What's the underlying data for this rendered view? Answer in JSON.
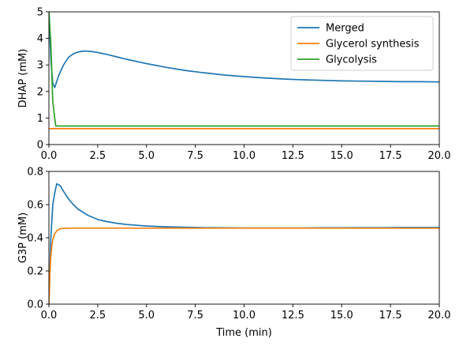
{
  "chart_data": [
    {
      "type": "line",
      "title": "",
      "xlabel": "",
      "ylabel": "DHAP (mM)",
      "xlim": [
        0,
        20
      ],
      "ylim": [
        0,
        5
      ],
      "xticks": [
        0,
        2.5,
        5,
        7.5,
        10,
        12.5,
        15,
        17.5,
        20
      ],
      "xtick_labels": [
        "0.0",
        "2.5",
        "5.0",
        "7.5",
        "10.0",
        "12.5",
        "15.0",
        "17.5",
        "20.0"
      ],
      "yticks": [
        0,
        1,
        2,
        3,
        4,
        5
      ],
      "ytick_labels": [
        "0",
        "1",
        "2",
        "3",
        "4",
        "5"
      ],
      "grid": false,
      "legend": "top-right",
      "series": [
        {
          "name": "Merged",
          "color": "#1f77b4",
          "x": [
            0,
            0.1,
            0.2,
            0.3,
            0.5,
            0.75,
            1.0,
            1.25,
            1.5,
            1.75,
            2.0,
            2.25,
            2.5,
            3.0,
            3.5,
            4.0,
            5.0,
            6.0,
            7.0,
            8.0,
            9.0,
            10.0,
            11.0,
            12.0,
            13.0,
            14.0,
            15.0,
            16.0,
            17.0,
            18.0,
            19.0,
            20.0
          ],
          "y": [
            5.0,
            3.2,
            2.3,
            2.15,
            2.6,
            3.0,
            3.28,
            3.42,
            3.49,
            3.52,
            3.52,
            3.5,
            3.47,
            3.39,
            3.3,
            3.21,
            3.05,
            2.91,
            2.79,
            2.7,
            2.62,
            2.56,
            2.51,
            2.47,
            2.44,
            2.42,
            2.4,
            2.39,
            2.38,
            2.37,
            2.37,
            2.36
          ]
        },
        {
          "name": "Glycerol synthesis",
          "color": "#ff7f0e",
          "x": [
            0,
            20
          ],
          "y": [
            0.6,
            0.6
          ]
        },
        {
          "name": "Glycolysis",
          "color": "#2ca02c",
          "x": [
            0,
            0.1,
            0.2,
            0.35,
            20
          ],
          "y": [
            5.0,
            3.8,
            1.6,
            0.7,
            0.7
          ]
        }
      ]
    },
    {
      "type": "line",
      "title": "",
      "xlabel": "Time (min)",
      "ylabel": "G3P (mM)",
      "xlim": [
        0,
        20
      ],
      "ylim": [
        0,
        0.8
      ],
      "xticks": [
        0,
        2.5,
        5,
        7.5,
        10,
        12.5,
        15,
        17.5,
        20
      ],
      "xtick_labels": [
        "0.0",
        "2.5",
        "5.0",
        "7.5",
        "10.0",
        "12.5",
        "15.0",
        "17.5",
        "20.0"
      ],
      "yticks": [
        0,
        0.2,
        0.4,
        0.6,
        0.8
      ],
      "ytick_labels": [
        "0.0",
        "0.2",
        "0.4",
        "0.6",
        "0.8"
      ],
      "grid": false,
      "legend": "none",
      "series": [
        {
          "color": "#1f77b4",
          "x": [
            0,
            0.1,
            0.2,
            0.3,
            0.4,
            0.5,
            0.6,
            0.75,
            1.0,
            1.25,
            1.5,
            2.0,
            2.5,
            3.0,
            3.5,
            4.0,
            5.0,
            6.0,
            7.0,
            8.0,
            9.0,
            10.0,
            11.0,
            12.0,
            13.0,
            14.0,
            15.0,
            16.0,
            17.0,
            18.0,
            19.0,
            20.0
          ],
          "y": [
            0.0,
            0.4,
            0.6,
            0.67,
            0.725,
            0.72,
            0.71,
            0.68,
            0.635,
            0.6,
            0.572,
            0.535,
            0.51,
            0.497,
            0.487,
            0.48,
            0.471,
            0.466,
            0.463,
            0.461,
            0.46,
            0.459,
            0.459,
            0.459,
            0.459,
            0.46,
            0.46,
            0.461,
            0.461,
            0.462,
            0.462,
            0.462
          ]
        },
        {
          "color": "#ff7f0e",
          "x": [
            0,
            0.05,
            0.1,
            0.15,
            0.2,
            0.3,
            0.4,
            0.5,
            0.6,
            0.8,
            1.0,
            1.5,
            2.0,
            5.0,
            10.0,
            15.0,
            20.0
          ],
          "y": [
            0.0,
            0.18,
            0.29,
            0.35,
            0.39,
            0.425,
            0.44,
            0.45,
            0.455,
            0.457,
            0.458,
            0.458,
            0.458,
            0.458,
            0.458,
            0.458,
            0.458
          ]
        }
      ]
    }
  ]
}
